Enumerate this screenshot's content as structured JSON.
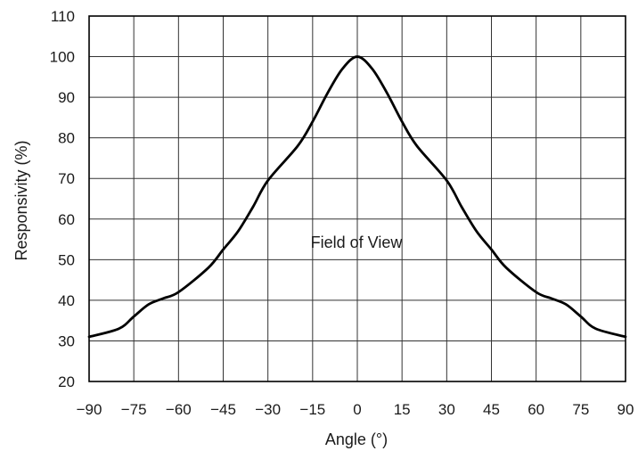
{
  "chart_data": {
    "type": "line",
    "xlabel": "Angle (°)",
    "ylabel": "Responsivity (%)",
    "xlim": [
      -90,
      90
    ],
    "ylim": [
      20,
      110
    ],
    "x_ticks": [
      -90,
      -75,
      -60,
      -45,
      -30,
      -15,
      0,
      15,
      30,
      45,
      60,
      75,
      90
    ],
    "x_tick_labels": [
      "−90",
      "−75",
      "−60",
      "−45",
      "−30",
      "−15",
      "0",
      "15",
      "30",
      "45",
      "60",
      "75",
      "90"
    ],
    "y_ticks": [
      20,
      30,
      40,
      50,
      60,
      70,
      80,
      90,
      100,
      110
    ],
    "y_tick_labels": [
      "20",
      "30",
      "40",
      "50",
      "60",
      "70",
      "80",
      "90",
      "100",
      "110"
    ],
    "grid": true,
    "annotation": "Field of View",
    "series": [
      {
        "color": "#000000",
        "x": [
          -90,
          -80,
          -75,
          -70,
          -65,
          -60,
          -50,
          -45,
          -40,
          -35,
          -30,
          -20,
          -15,
          -10,
          -5,
          0,
          5,
          10,
          15,
          20,
          30,
          35,
          40,
          45,
          50,
          60,
          65,
          70,
          75,
          80,
          90
        ],
        "y": [
          31,
          33,
          36,
          39,
          40.5,
          42,
          48,
          52.5,
          57,
          63,
          69.5,
          78,
          84,
          91,
          97,
          100,
          97,
          91,
          84,
          78,
          69.5,
          63,
          57,
          52.5,
          48,
          42,
          40.5,
          39,
          36,
          33,
          31
        ]
      }
    ]
  }
}
